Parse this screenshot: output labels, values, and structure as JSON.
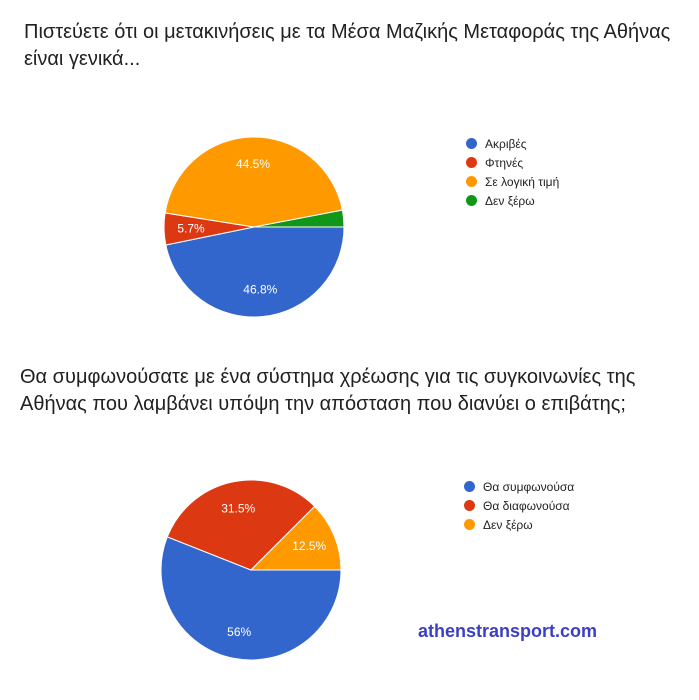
{
  "chart_data": [
    {
      "type": "pie",
      "title": "Πιστεύετε ότι οι μετακινήσεις με τα Μέσα Μαζικής Μεταφοράς της Αθήνας είναι γενικά...",
      "legend_position": "right",
      "slices": [
        {
          "label": "Ακριβές",
          "value": 46.8,
          "display": "46.8%",
          "color": "#3366cc"
        },
        {
          "label": "Φτηνές",
          "value": 5.7,
          "display": "5.7%",
          "color": "#dc3912"
        },
        {
          "label": "Σε λογική τιμή",
          "value": 44.5,
          "display": "44.5%",
          "color": "#ff9900"
        },
        {
          "label": "Δεν ξέρω",
          "value": 3.0,
          "display": "",
          "color": "#109618"
        }
      ]
    },
    {
      "type": "pie",
      "title": "Θα συμφωνούσατε με ένα σύστημα χρέωσης για τις συγκοινωνίες της Αθήνας που λαμβάνει υπόψη την απόσταση που διανύει ο επιβάτης;",
      "legend_position": "right",
      "slices": [
        {
          "label": "Θα συμφωνούσα",
          "value": 56,
          "display": "56%",
          "color": "#3366cc"
        },
        {
          "label": "Θα διαφωνούσα",
          "value": 31.5,
          "display": "31.5%",
          "color": "#dc3912"
        },
        {
          "label": "Δεν ξέρω",
          "value": 12.5,
          "display": "12.5%",
          "color": "#ff9900"
        }
      ]
    }
  ],
  "watermark": "athenstransport.com"
}
